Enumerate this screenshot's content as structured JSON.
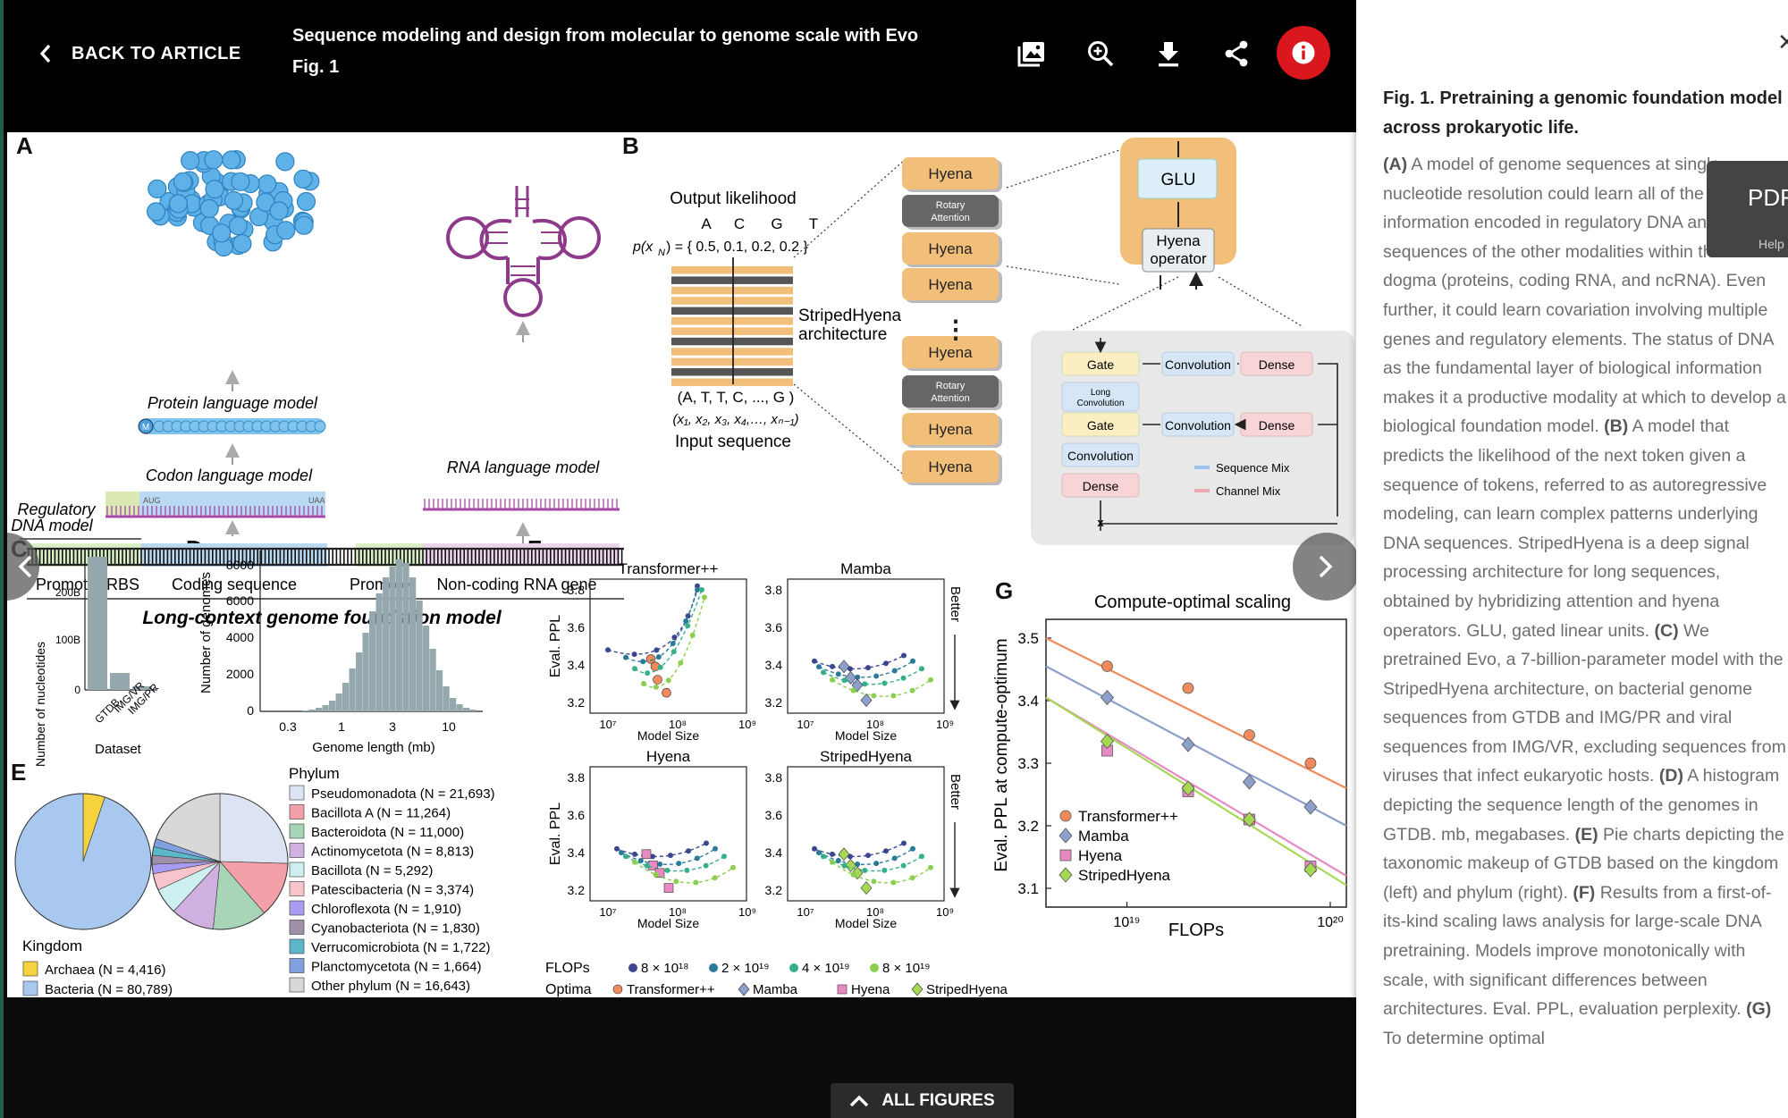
{
  "toolbar": {
    "back_label": "BACK TO ARTICLE",
    "title": "Sequence modeling and design from molecular to genome scale with Evo",
    "subtitle": "Fig. 1",
    "icons": [
      "image-icon",
      "zoom-in-icon",
      "download-icon",
      "share-icon",
      "info-icon"
    ]
  },
  "bottom": {
    "all_figures_label": "ALL FIGURES"
  },
  "caption": {
    "title": "Fig. 1. Pretraining a genomic foundation model across prokaryotic life.",
    "body_parts": [
      {
        "b": "A",
        "t": " A model of genome sequences at single-nucleotide resolution could learn all of the information encoded in regulatory DNA and the sequences of the other modalities within the central dogma (proteins, coding RNA, and ncRNA). Even further, it could learn covariation involving multiple genes and regulatory elements. The status of DNA as the fundamental layer of biological information makes it a productive modality at which to develop a biological foundation model. "
      },
      {
        "b": "B",
        "t": " A model that predicts the likelihood of the next token given a sequence of tokens, referred to as autoregressive modeling, can learn complex patterns underlying DNA sequences. StripedHyena is a deep signal processing architecture for long sequences, obtained by hybridizing attention and hyena operators. GLU, gated linear units. "
      },
      {
        "b": "C",
        "t": " We pretrained Evo, a 7-billion-parameter model with the StripedHyena architecture, on bacterial genome sequences from GTDB and IMG/PR and viral sequences from IMG/VR, excluding sequences from viruses that infect eukaryotic hosts. "
      },
      {
        "b": "D",
        "t": " A histogram depicting the sequence length of the genomes in GTDB. mb, megabases. "
      },
      {
        "b": "E",
        "t": " Pie charts depicting the taxonomic makeup of GTDB based on the kingdom (left) and phylum (right). "
      },
      {
        "b": "F",
        "t": " Results from a first-of-its-kind scaling laws analysis for large-scale DNA pretraining. Models improve monotonically with scale, with significant differences between architectures. Eval. PPL, evaluation perplexity. "
      },
      {
        "b": "G",
        "t": " To determine optimal"
      }
    ]
  },
  "pdf_tab": {
    "label": "PDF",
    "help": "Help"
  },
  "figure": {
    "panel_letters": [
      "A",
      "B",
      "C",
      "D",
      "E",
      "F",
      "G"
    ],
    "panelA": {
      "protein_model": "Protein language model",
      "codon_model": "Codon language model",
      "rna_model": "RNA language model",
      "regulatory_model": "Regulatory",
      "regulatory_model2": "DNA model",
      "start_codon": "AUG",
      "stop_codon": "UAA",
      "m_label": "M",
      "segments": [
        "Promoter RBS",
        "Coding sequence",
        "Promoter",
        "Non-coding RNA gene"
      ],
      "footer": "Long-context genome foundation model"
    },
    "panelB": {
      "output_likelihood": "Output likelihood",
      "bases": [
        "A",
        "C",
        "G",
        "T"
      ],
      "prob_expr": "p(x",
      "prob_sub": "N",
      "prob_values": ") = { 0.5,  0.1,  0.2,  0.2 }",
      "input_tokens": "(A,  T,  T,  C,  ...,  G  )",
      "input_vars": "(x₁, x₂, x₃, x₄,…, xₙ₋₁)",
      "input_sequence": "Input sequence",
      "arch_label1": "StripedHyena",
      "arch_label2": "architecture",
      "stack": [
        "Hyena",
        "Rotary Attention",
        "Hyena",
        "Hyena",
        "Hyena",
        "Rotary Attention",
        "Hyena",
        "Hyena"
      ],
      "glu": "GLU",
      "hyena_op1": "Hyena",
      "hyena_op2": "operator",
      "gate": "Gate",
      "convolution": "Convolution",
      "dense": "Dense",
      "long_conv1": "Long",
      "long_conv2": "Convolution",
      "x_label": "x",
      "seq_mix": "Sequence Mix",
      "channel_mix": "Channel Mix"
    },
    "panelC": {
      "ylabel": "Number of nucleotides",
      "xlabel": "Dataset",
      "yticks": [
        "0",
        "100B",
        "200B"
      ],
      "categories": [
        "GTDB",
        "IMG/VR",
        "IMG/PR"
      ]
    },
    "panelD": {
      "ylabel": "Number of genomes",
      "xlabel": "Genome length (mb)",
      "yticks": [
        "0",
        "2000",
        "4000",
        "6000",
        "8000"
      ],
      "xticks": [
        "0.3",
        "1",
        "3",
        "10"
      ]
    },
    "panelE": {
      "kingdom_title": "Kingdom",
      "kingdom": [
        {
          "name": "Archaea",
          "n": "(N = 4,416)",
          "color": "#f6d23c"
        },
        {
          "name": "Bacteria",
          "n": "(N = 80,789)",
          "color": "#a8c8f0"
        }
      ],
      "phylum_title": "Phylum",
      "phyla": [
        {
          "name": "Pseudomonadota",
          "n": "(N = 21,693)",
          "color": "#dce4f4"
        },
        {
          "name": "Bacillota A",
          "n": "(N = 11,264)",
          "color": "#f4a0a8"
        },
        {
          "name": "Bacteroidota",
          "n": "(N = 11,000)",
          "color": "#a8d4b8"
        },
        {
          "name": "Actinomycetota",
          "n": "(N = 8,813)",
          "color": "#d0b0e0"
        },
        {
          "name": "Bacillota",
          "n": "(N = 5,292)",
          "color": "#cdeff0"
        },
        {
          "name": "Patescibacteria",
          "n": "(N = 3,374)",
          "color": "#f8c4cc"
        },
        {
          "name": "Chloroflexota",
          "n": "(N = 1,910)",
          "color": "#a89cf0"
        },
        {
          "name": "Cyanobacteriota",
          "n": "(N = 1,830)",
          "color": "#a090a8"
        },
        {
          "name": "Verrucomicrobiota",
          "n": "(N = 1,722)",
          "color": "#5cb8c8"
        },
        {
          "name": "Planctomycetota",
          "n": "(N = 1,664)",
          "color": "#80a0e0"
        },
        {
          "name": "Other phylum",
          "n": "(N = 16,643)",
          "color": "#d8d8d8"
        }
      ]
    },
    "panelF": {
      "subplots": [
        "Transformer++",
        "Mamba",
        "Hyena",
        "StripedHyena"
      ],
      "ylabel": "Eval. PPL",
      "xlabel": "Model Size",
      "yticks": [
        "3.2",
        "3.4",
        "3.6",
        "3.8"
      ],
      "xticks": [
        "10⁷",
        "10⁸",
        "10⁹"
      ],
      "better": "Better",
      "flops_label": "FLOPs",
      "flops": [
        "8 × 10¹⁸",
        "2 × 10¹⁹",
        "4 × 10¹⁹",
        "8 × 10¹⁹"
      ],
      "optima_label": "Optima",
      "optima": [
        "Transformer++",
        "Mamba",
        "Hyena",
        "StripedHyena"
      ]
    }
  },
  "chart_data": {
    "type": "scatter",
    "title": "Compute-optimal scaling",
    "xlabel": "FLOPs",
    "ylabel": "Eval. PPL at compute-optimum",
    "x_scale": "log",
    "x_ticks": [
      "10¹⁹",
      "10²⁰"
    ],
    "y_ticks": [
      "3.1",
      "3.2",
      "3.3",
      "3.4",
      "3.5"
    ],
    "ylim": [
      3.07,
      3.53
    ],
    "xlim": [
      4e+18,
      1.2e+20
    ],
    "x": [
      8e+18,
      2e+19,
      4e+19,
      8e+19
    ],
    "series": [
      {
        "name": "Transformer++",
        "color": "#f08a5d",
        "marker": "circle",
        "values": [
          3.455,
          3.42,
          3.345,
          3.3
        ]
      },
      {
        "name": "Mamba",
        "color": "#8da0cb",
        "marker": "diamond",
        "values": [
          3.405,
          3.33,
          3.27,
          3.23
        ]
      },
      {
        "name": "Hyena",
        "color": "#e78ac3",
        "marker": "square",
        "values": [
          3.32,
          3.255,
          3.21,
          3.135
        ]
      },
      {
        "name": "StripedHyena",
        "color": "#a6d854",
        "marker": "diamond",
        "values": [
          3.335,
          3.26,
          3.21,
          3.13
        ]
      }
    ],
    "fit_lines": [
      {
        "name": "Transformer++",
        "y_start": 3.5,
        "y_end": 3.26
      },
      {
        "name": "Mamba",
        "y_start": 3.455,
        "y_end": 3.2
      },
      {
        "name": "Hyena",
        "y_start": 3.405,
        "y_end": 3.12
      },
      {
        "name": "StripedHyena",
        "y_start": 3.405,
        "y_end": 3.105
      }
    ],
    "legend": "bottom-left",
    "grid": false
  }
}
